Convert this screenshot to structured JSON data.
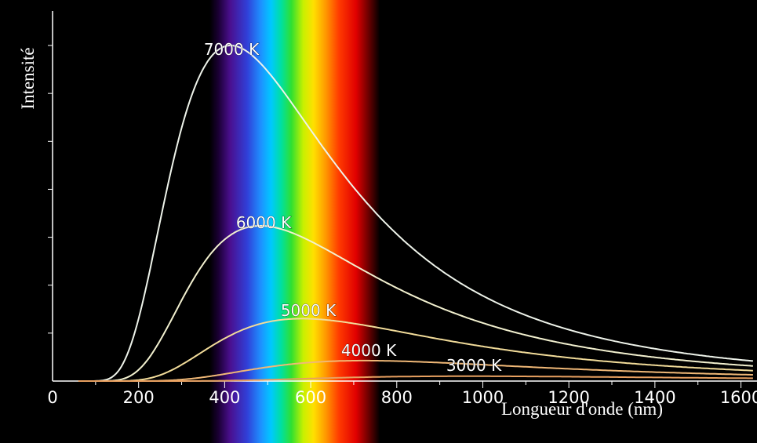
{
  "chart_data": {
    "type": "line",
    "xlabel": "Longueur d'onde (nm)",
    "ylabel": "Intensité",
    "xlim": [
      0,
      1630
    ],
    "ylim": [
      0,
      1.15
    ],
    "xticks": [
      0,
      200,
      400,
      600,
      800,
      1000,
      1200,
      1400,
      1600
    ],
    "x_tick_labels": [
      "0",
      "200",
      "400",
      "600",
      "800",
      "1000",
      "1200",
      "1400",
      "1600"
    ],
    "grid": false,
    "legend": "none",
    "visible_spectrum_nm": [
      380,
      750
    ],
    "series": [
      {
        "name": "7000 K",
        "temperature": 7000,
        "color": "#eef3ea",
        "peak": {
          "x": 414,
          "y": 1.0
        }
      },
      {
        "name": "6000 K",
        "temperature": 6000,
        "color": "#f2f0cf",
        "peak": {
          "x": 483,
          "y": 0.46
        }
      },
      {
        "name": "5000 K",
        "temperature": 5000,
        "color": "#f2dc9a",
        "peak": {
          "x": 580,
          "y": 0.186
        }
      },
      {
        "name": "4000 K",
        "temperature": 4000,
        "color": "#f0b877",
        "peak": {
          "x": 724,
          "y": 0.061
        }
      },
      {
        "name": "3000 K",
        "temperature": 3000,
        "color": "#e8a060",
        "peak": {
          "x": 966,
          "y": 0.014
        }
      }
    ]
  }
}
